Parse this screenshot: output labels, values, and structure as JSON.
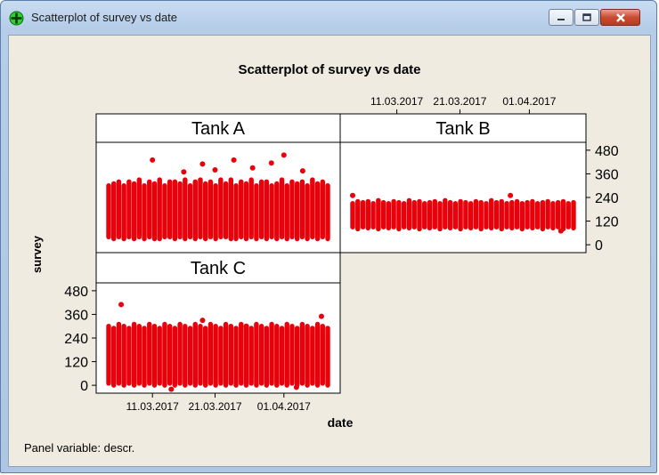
{
  "window": {
    "title": "Scatterplot of survey vs date",
    "icon": "crosshair-plus-icon",
    "controls": [
      "minimize-icon",
      "maximize-icon",
      "close-icon"
    ]
  },
  "footer": {
    "panel_variable_text": "Panel variable: descr."
  },
  "colors": {
    "marker": "#e8000b",
    "background": "#efebe0",
    "panel": "#ffffff",
    "frame": "#000000"
  },
  "chart_data": {
    "type": "scatter",
    "title": "Scatterplot of survey vs date",
    "xlabel": "date",
    "ylabel": "survey",
    "x_ticks": [
      "11.03.2017",
      "21.03.2017",
      "01.04.2017"
    ],
    "y_ticks": [
      0,
      120,
      240,
      360,
      480
    ],
    "ylim": [
      -40,
      520
    ],
    "date_range": [
      "2017-03-04",
      "2017-04-08"
    ],
    "panels": [
      {
        "name": "Tank A",
        "bands": [
          [
            40,
            300
          ],
          [
            30,
            310
          ],
          [
            40,
            320
          ],
          [
            30,
            300
          ],
          [
            40,
            320
          ],
          [
            30,
            310
          ],
          [
            40,
            330
          ],
          [
            30,
            300
          ],
          [
            40,
            320
          ],
          [
            30,
            310
          ],
          [
            30,
            330
          ],
          [
            40,
            300
          ],
          [
            40,
            320
          ],
          [
            30,
            320
          ],
          [
            40,
            310
          ],
          [
            30,
            330
          ],
          [
            40,
            300
          ],
          [
            30,
            320
          ],
          [
            40,
            330
          ],
          [
            30,
            310
          ],
          [
            40,
            320
          ],
          [
            30,
            300
          ],
          [
            40,
            330
          ],
          [
            40,
            310
          ],
          [
            30,
            330
          ],
          [
            30,
            300
          ],
          [
            40,
            320
          ],
          [
            30,
            310
          ],
          [
            40,
            330
          ],
          [
            30,
            300
          ],
          [
            40,
            320
          ],
          [
            30,
            320
          ],
          [
            40,
            300
          ],
          [
            30,
            310
          ],
          [
            40,
            330
          ],
          [
            30,
            300
          ],
          [
            40,
            320
          ],
          [
            30,
            310
          ],
          [
            40,
            320
          ],
          [
            30,
            300
          ],
          [
            40,
            330
          ],
          [
            30,
            310
          ],
          [
            40,
            320
          ],
          [
            30,
            300
          ]
        ],
        "outliers": [
          [
            "2017-03-11",
            430
          ],
          [
            "2017-03-16",
            370
          ],
          [
            "2017-03-19",
            410
          ],
          [
            "2017-03-21",
            380
          ],
          [
            "2017-03-24",
            430
          ],
          [
            "2017-03-27",
            390
          ],
          [
            "2017-03-30",
            415
          ],
          [
            "2017-04-01",
            455
          ],
          [
            "2017-04-04",
            375
          ]
        ]
      },
      {
        "name": "Tank B",
        "bands": [
          [
            90,
            210
          ],
          [
            80,
            220
          ],
          [
            90,
            215
          ],
          [
            85,
            220
          ],
          [
            90,
            210
          ],
          [
            80,
            225
          ],
          [
            90,
            215
          ],
          [
            85,
            210
          ],
          [
            90,
            220
          ],
          [
            80,
            215
          ],
          [
            90,
            210
          ],
          [
            85,
            225
          ],
          [
            90,
            215
          ],
          [
            80,
            220
          ],
          [
            90,
            210
          ],
          [
            85,
            215
          ],
          [
            90,
            220
          ],
          [
            80,
            210
          ],
          [
            90,
            225
          ],
          [
            85,
            215
          ],
          [
            90,
            210
          ],
          [
            80,
            220
          ],
          [
            90,
            215
          ],
          [
            85,
            210
          ],
          [
            90,
            220
          ],
          [
            80,
            215
          ],
          [
            90,
            210
          ],
          [
            85,
            225
          ],
          [
            90,
            215
          ],
          [
            80,
            220
          ],
          [
            90,
            210
          ],
          [
            85,
            215
          ],
          [
            90,
            220
          ],
          [
            80,
            210
          ],
          [
            90,
            215
          ],
          [
            85,
            220
          ],
          [
            90,
            210
          ],
          [
            80,
            215
          ],
          [
            90,
            220
          ],
          [
            85,
            210
          ],
          [
            90,
            215
          ],
          [
            80,
            220
          ],
          [
            90,
            210
          ],
          [
            85,
            215
          ]
        ],
        "outliers": [
          [
            "2017-03-04",
            250
          ],
          [
            "2017-03-29",
            250
          ],
          [
            "2017-04-06",
            70
          ]
        ]
      },
      {
        "name": "Tank C",
        "bands": [
          [
            10,
            300
          ],
          [
            0,
            290
          ],
          [
            10,
            310
          ],
          [
            0,
            300
          ],
          [
            10,
            290
          ],
          [
            0,
            310
          ],
          [
            10,
            300
          ],
          [
            0,
            290
          ],
          [
            10,
            310
          ],
          [
            0,
            300
          ],
          [
            10,
            290
          ],
          [
            0,
            310
          ],
          [
            10,
            300
          ],
          [
            0,
            290
          ],
          [
            10,
            310
          ],
          [
            0,
            300
          ],
          [
            10,
            290
          ],
          [
            0,
            310
          ],
          [
            10,
            300
          ],
          [
            0,
            290
          ],
          [
            10,
            310
          ],
          [
            0,
            300
          ],
          [
            10,
            290
          ],
          [
            0,
            310
          ],
          [
            10,
            300
          ],
          [
            0,
            290
          ],
          [
            10,
            310
          ],
          [
            0,
            300
          ],
          [
            10,
            290
          ],
          [
            0,
            310
          ],
          [
            10,
            300
          ],
          [
            0,
            290
          ],
          [
            10,
            310
          ],
          [
            0,
            300
          ],
          [
            10,
            290
          ],
          [
            0,
            310
          ],
          [
            10,
            300
          ],
          [
            0,
            290
          ],
          [
            10,
            310
          ],
          [
            0,
            300
          ],
          [
            10,
            290
          ],
          [
            0,
            310
          ],
          [
            10,
            300
          ],
          [
            0,
            290
          ]
        ],
        "outliers": [
          [
            "2017-03-06",
            410
          ],
          [
            "2017-03-14",
            -20
          ],
          [
            "2017-03-19",
            330
          ],
          [
            "2017-03-26",
            300
          ],
          [
            "2017-04-03",
            -10
          ],
          [
            "2017-04-07",
            350
          ]
        ]
      }
    ]
  }
}
